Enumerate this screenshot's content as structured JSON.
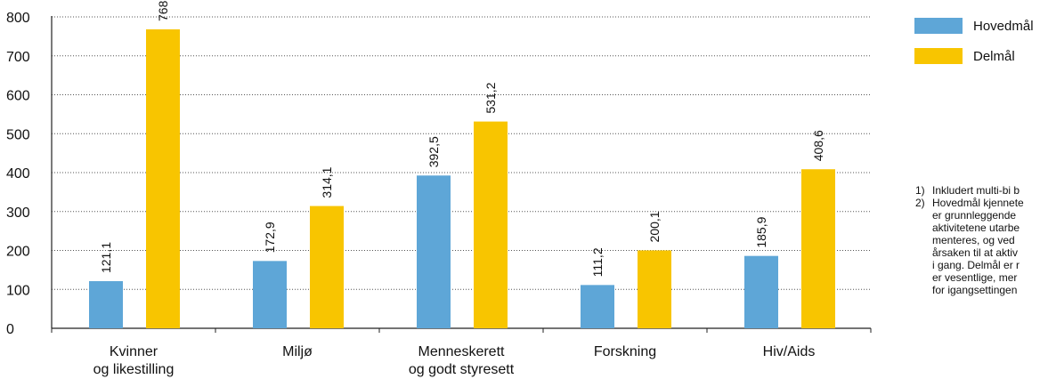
{
  "chart_data": {
    "type": "bar",
    "categories": [
      [
        "Kvinner",
        "og likestilling"
      ],
      [
        "Miljø"
      ],
      [
        "Menneskerett",
        "og godt styresett"
      ],
      [
        "Forskning"
      ],
      [
        "Hiv/Aids"
      ]
    ],
    "series": [
      {
        "name": "Hovedmål",
        "values": [
          121.1,
          172.9,
          392.5,
          111.2,
          185.9
        ],
        "labels": [
          "121,1",
          "172,9",
          "392,5",
          "111,2",
          "185,9"
        ],
        "color": "#5ea6d7"
      },
      {
        "name": "Delmål",
        "values": [
          768,
          314.1,
          531.2,
          200.1,
          408.6
        ],
        "labels": [
          "768",
          "314,1",
          "531,2",
          "200,1",
          "408,6"
        ],
        "color": "#f8c500"
      }
    ],
    "ylim": [
      0,
      800
    ],
    "yticks": [
      "0",
      "100",
      "200",
      "300",
      "400",
      "500",
      "600",
      "700",
      "800"
    ],
    "grid": true,
    "legend_position": "top-right"
  },
  "notes": [
    {
      "num": "1)",
      "text": "Inkludert multi-bi b"
    },
    {
      "num": "2)",
      "text": "Hovedmål kjennete"
    },
    {
      "num": "",
      "text": "er grunnleggende"
    },
    {
      "num": "",
      "text": "aktivitetene utarbe"
    },
    {
      "num": "",
      "text": "menteres, og ved"
    },
    {
      "num": "",
      "text": "årsaken til at aktiv"
    },
    {
      "num": "",
      "text": "i gang. Delmål er r"
    },
    {
      "num": "",
      "text": "er vesentlige, mer"
    },
    {
      "num": "",
      "text": "for igangsettingen"
    }
  ]
}
